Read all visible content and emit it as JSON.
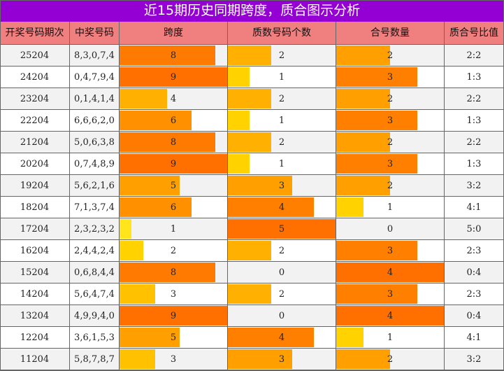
{
  "title": "近15期历史同期跨度，质合图示分析",
  "colors": {
    "title_bg": "#9400d3",
    "header_bg": "#f08080",
    "stripe_bg": "#f2f2f2",
    "scale": [
      "#ffff33",
      "#ffe519",
      "#ffd200",
      "#ffc100",
      "#ffb000",
      "#ffa000",
      "#ff9000",
      "#ff8000",
      "#ff7a00",
      "#ff7000"
    ]
  },
  "chart_data": {
    "type": "table",
    "columns": [
      "开奖号码期次",
      "中奖号码",
      "跨度",
      "质数号码个数",
      "合号数量",
      "质合号比值"
    ],
    "bar_max": {
      "span": 9,
      "prime": 5,
      "composite": 4
    },
    "rows": [
      {
        "period": "25204",
        "numbers": "8,3,0,7,4",
        "span": 8,
        "prime": 2,
        "composite": 2,
        "ratio": "2:2"
      },
      {
        "period": "24204",
        "numbers": "0,4,7,9,4",
        "span": 9,
        "prime": 1,
        "composite": 3,
        "ratio": "1:3"
      },
      {
        "period": "23204",
        "numbers": "0,1,4,1,4",
        "span": 4,
        "prime": 2,
        "composite": 2,
        "ratio": "2:2"
      },
      {
        "period": "22204",
        "numbers": "6,6,6,2,0",
        "span": 6,
        "prime": 1,
        "composite": 3,
        "ratio": "1:3"
      },
      {
        "period": "21204",
        "numbers": "5,0,6,3,8",
        "span": 8,
        "prime": 2,
        "composite": 2,
        "ratio": "2:2"
      },
      {
        "period": "20204",
        "numbers": "0,7,4,8,9",
        "span": 9,
        "prime": 1,
        "composite": 3,
        "ratio": "1:3"
      },
      {
        "period": "19204",
        "numbers": "5,6,2,1,6",
        "span": 5,
        "prime": 3,
        "composite": 2,
        "ratio": "3:2"
      },
      {
        "period": "18204",
        "numbers": "7,1,3,7,4",
        "span": 6,
        "prime": 4,
        "composite": 1,
        "ratio": "4:1"
      },
      {
        "period": "17204",
        "numbers": "2,3,2,3,2",
        "span": 1,
        "prime": 5,
        "composite": 0,
        "ratio": "5:0"
      },
      {
        "period": "16204",
        "numbers": "2,4,4,2,4",
        "span": 2,
        "prime": 2,
        "composite": 3,
        "ratio": "2:3"
      },
      {
        "period": "15204",
        "numbers": "0,6,8,4,4",
        "span": 8,
        "prime": 0,
        "composite": 4,
        "ratio": "0:4"
      },
      {
        "period": "14204",
        "numbers": "5,6,4,7,4",
        "span": 3,
        "prime": 2,
        "composite": 3,
        "ratio": "2:3"
      },
      {
        "period": "13204",
        "numbers": "4,9,9,4,0",
        "span": 9,
        "prime": 0,
        "composite": 4,
        "ratio": "0:4"
      },
      {
        "period": "12204",
        "numbers": "3,6,1,5,3",
        "span": 5,
        "prime": 4,
        "composite": 1,
        "ratio": "4:1"
      },
      {
        "period": "11204",
        "numbers": "5,8,7,8,7",
        "span": 3,
        "prime": 3,
        "composite": 2,
        "ratio": "3:2"
      }
    ]
  }
}
